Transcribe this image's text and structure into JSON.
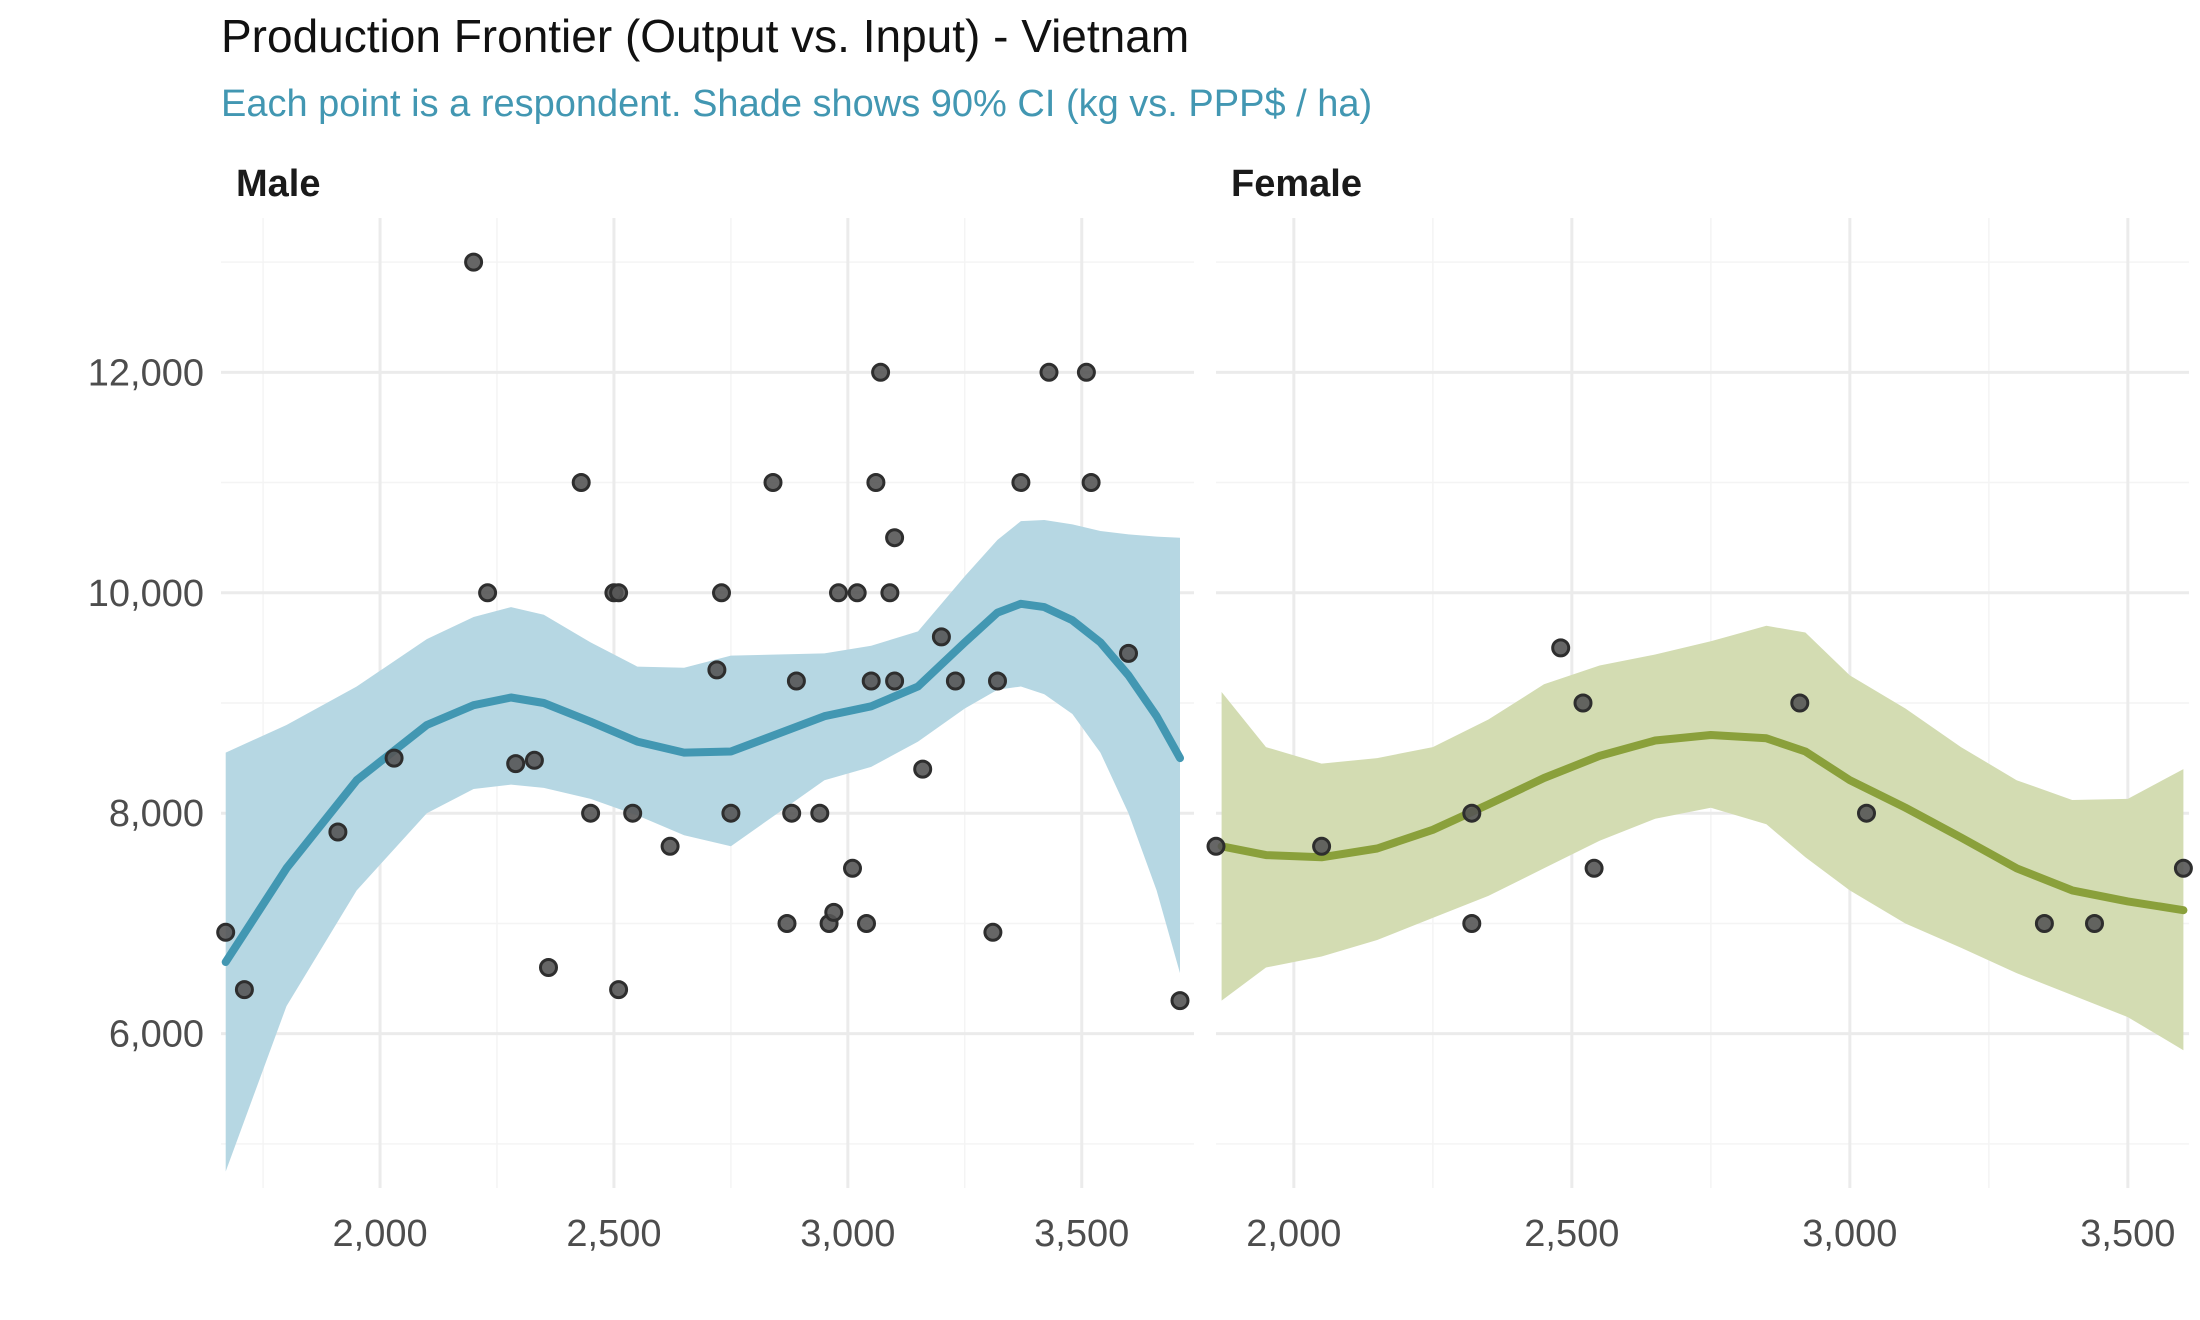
{
  "chart_data": {
    "type": "scatter",
    "title": "Production Frontier (Output vs. Input) - Vietnam",
    "subtitle": "Each point is a respondent. Shade shows 90% CI (kg vs. PPP$ / ha)",
    "xlabel": "",
    "ylabel": "",
    "grid": true,
    "legend": "none",
    "facets": [
      {
        "name": "Male",
        "color": "#4297b2",
        "fill": "#b6d7e3",
        "xlim": [
          1660,
          3740
        ],
        "ylim": [
          4600,
          13400
        ],
        "x_ticks": [
          2000,
          2500,
          3000,
          3500
        ],
        "x_tick_labels": [
          "2,000",
          "2,500",
          "3,000",
          "3,500"
        ],
        "y_ticks": [
          6000,
          8000,
          10000,
          12000
        ],
        "y_tick_labels": [
          "6,000",
          "8,000",
          "10,000",
          "12,000"
        ],
        "points": [
          [
            1670,
            6920
          ],
          [
            1710,
            6400
          ],
          [
            1910,
            7830
          ],
          [
            2030,
            8500
          ],
          [
            2200,
            13000
          ],
          [
            2230,
            10000
          ],
          [
            2290,
            8450
          ],
          [
            2330,
            8480
          ],
          [
            2360,
            6600
          ],
          [
            2430,
            11000
          ],
          [
            2450,
            8000
          ],
          [
            2500,
            10000
          ],
          [
            2510,
            10000
          ],
          [
            2510,
            6400
          ],
          [
            2540,
            8000
          ],
          [
            2620,
            7700
          ],
          [
            2720,
            9300
          ],
          [
            2730,
            10000
          ],
          [
            2750,
            8000
          ],
          [
            2840,
            11000
          ],
          [
            2870,
            7000
          ],
          [
            2880,
            8000
          ],
          [
            2890,
            9200
          ],
          [
            2940,
            8000
          ],
          [
            2960,
            7000
          ],
          [
            2970,
            7100
          ],
          [
            2980,
            10000
          ],
          [
            3010,
            7500
          ],
          [
            3020,
            10000
          ],
          [
            3040,
            7000
          ],
          [
            3050,
            9200
          ],
          [
            3060,
            11000
          ],
          [
            3070,
            12000
          ],
          [
            3090,
            10000
          ],
          [
            3100,
            10500
          ],
          [
            3100,
            9200
          ],
          [
            3160,
            8400
          ],
          [
            3200,
            9600
          ],
          [
            3230,
            9200
          ],
          [
            3310,
            6920
          ],
          [
            3320,
            9200
          ],
          [
            3370,
            11000
          ],
          [
            3430,
            12000
          ],
          [
            3510,
            12000
          ],
          [
            3520,
            11000
          ],
          [
            3600,
            9450
          ],
          [
            3710,
            6300
          ]
        ],
        "fit_x": [
          1670,
          1800,
          1950,
          2100,
          2200,
          2280,
          2350,
          2450,
          2550,
          2650,
          2750,
          2850,
          2950,
          3050,
          3150,
          3250,
          3320,
          3370,
          3420,
          3480,
          3540,
          3600,
          3660,
          3710
        ],
        "fit_y": [
          6650,
          7500,
          8300,
          8800,
          8980,
          9050,
          9000,
          8830,
          8650,
          8550,
          8560,
          8720,
          8880,
          8970,
          9150,
          9550,
          9820,
          9900,
          9870,
          9750,
          9550,
          9250,
          8880,
          8500
        ],
        "ci_lower": [
          4750,
          6250,
          7300,
          8000,
          8220,
          8260,
          8230,
          8130,
          7980,
          7800,
          7700,
          8000,
          8300,
          8420,
          8650,
          8950,
          9120,
          9150,
          9080,
          8900,
          8550,
          8000,
          7300,
          6550
        ],
        "ci_upper": [
          8550,
          8800,
          9150,
          9580,
          9780,
          9870,
          9800,
          9550,
          9330,
          9320,
          9430,
          9440,
          9450,
          9520,
          9650,
          10150,
          10480,
          10650,
          10660,
          10620,
          10560,
          10530,
          10510,
          10500
        ]
      },
      {
        "name": "Female",
        "color": "#8aa03b",
        "fill": "#d3dcb2",
        "xlim": [
          1860,
          3610
        ],
        "ylim": [
          4600,
          13400
        ],
        "x_ticks": [
          2000,
          2500,
          3000,
          3500
        ],
        "x_tick_labels": [
          "2,000",
          "2,500",
          "3,000",
          "3,500"
        ],
        "y_ticks": [
          6000,
          8000,
          10000,
          12000
        ],
        "y_tick_labels": [
          "6,000",
          "8,000",
          "10,000",
          "12,000"
        ],
        "points": [
          [
            1860,
            7700
          ],
          [
            2050,
            7700
          ],
          [
            2320,
            8000
          ],
          [
            2320,
            7000
          ],
          [
            2480,
            9500
          ],
          [
            2520,
            9000
          ],
          [
            2540,
            7500
          ],
          [
            2910,
            9000
          ],
          [
            3030,
            8000
          ],
          [
            3350,
            7000
          ],
          [
            3440,
            7000
          ],
          [
            3600,
            7500
          ]
        ],
        "fit_x": [
          1870,
          1950,
          2050,
          2150,
          2250,
          2350,
          2450,
          2550,
          2650,
          2750,
          2850,
          2920,
          3000,
          3100,
          3200,
          3300,
          3400,
          3500,
          3600
        ],
        "fit_y": [
          7700,
          7620,
          7600,
          7680,
          7850,
          8080,
          8320,
          8520,
          8660,
          8710,
          8680,
          8560,
          8300,
          8050,
          7780,
          7500,
          7300,
          7200,
          7120
        ],
        "ci_lower": [
          6300,
          6600,
          6700,
          6850,
          7050,
          7250,
          7500,
          7750,
          7950,
          8050,
          7900,
          7600,
          7300,
          7000,
          6780,
          6550,
          6350,
          6150,
          5850
        ],
        "ci_upper": [
          9100,
          8600,
          8450,
          8500,
          8600,
          8850,
          9170,
          9340,
          9440,
          9560,
          9700,
          9640,
          9250,
          8950,
          8600,
          8300,
          8120,
          8130,
          8400
        ]
      }
    ]
  }
}
